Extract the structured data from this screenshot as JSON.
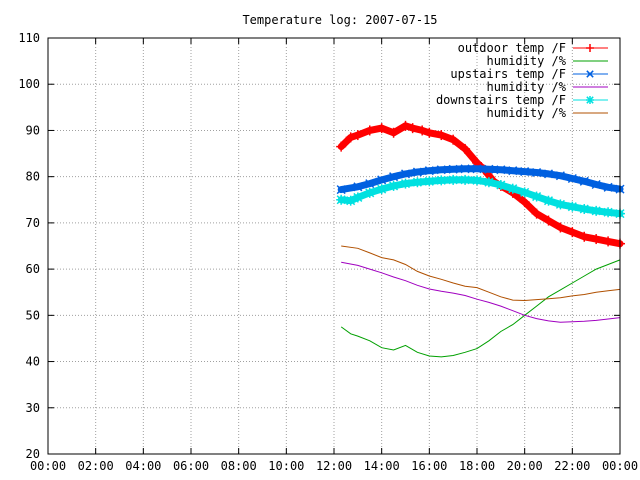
{
  "chart_data": {
    "type": "line",
    "title": "Temperature log: 2007-07-15",
    "xlabel": "",
    "ylabel": "",
    "x_unit": "hours",
    "xlim": [
      0,
      24
    ],
    "ylim": [
      20,
      110
    ],
    "grid": true,
    "legend_placement": "top-right",
    "x_ticks": [
      {
        "value": 0,
        "label": "00:00"
      },
      {
        "value": 2,
        "label": "02:00"
      },
      {
        "value": 4,
        "label": "04:00"
      },
      {
        "value": 6,
        "label": "06:00"
      },
      {
        "value": 8,
        "label": "08:00"
      },
      {
        "value": 10,
        "label": "10:00"
      },
      {
        "value": 12,
        "label": "12:00"
      },
      {
        "value": 14,
        "label": "14:00"
      },
      {
        "value": 16,
        "label": "16:00"
      },
      {
        "value": 18,
        "label": "18:00"
      },
      {
        "value": 20,
        "label": "20:00"
      },
      {
        "value": 22,
        "label": "22:00"
      },
      {
        "value": 24,
        "label": "00:00"
      }
    ],
    "y_ticks": [
      {
        "value": 20,
        "label": "20"
      },
      {
        "value": 30,
        "label": "30"
      },
      {
        "value": 40,
        "label": "40"
      },
      {
        "value": 50,
        "label": "50"
      },
      {
        "value": 60,
        "label": "60"
      },
      {
        "value": 70,
        "label": "70"
      },
      {
        "value": 80,
        "label": "80"
      },
      {
        "value": 90,
        "label": "90"
      },
      {
        "value": 100,
        "label": "100"
      },
      {
        "value": 110,
        "label": "110"
      }
    ],
    "series": [
      {
        "name": "outdoor temp /F",
        "color": "#ff0000",
        "marker": "plus",
        "thick": true,
        "x": [
          12.3,
          12.7,
          13.0,
          13.5,
          14.0,
          14.5,
          15.0,
          15.3,
          15.7,
          16.0,
          16.5,
          17.0,
          17.5,
          18.0,
          18.3,
          18.7,
          19.0,
          19.5,
          20.0,
          20.5,
          21.0,
          21.5,
          22.0,
          22.5,
          23.0,
          23.5,
          24.0
        ],
        "y": [
          86.5,
          88.5,
          89,
          90,
          90.5,
          89.5,
          91,
          90.5,
          90,
          89.5,
          89,
          88,
          86,
          83,
          81.5,
          79,
          78,
          76.5,
          74.5,
          72,
          70.5,
          69,
          68,
          67,
          66.5,
          66,
          65.5
        ]
      },
      {
        "name": "humidity /%",
        "color": "#00a000",
        "marker": "none",
        "thick": false,
        "x": [
          12.3,
          12.7,
          13.0,
          13.5,
          14.0,
          14.5,
          15.0,
          15.5,
          16.0,
          16.5,
          17.0,
          17.5,
          18.0,
          18.5,
          19.0,
          19.5,
          20.0,
          20.5,
          21.0,
          21.5,
          22.0,
          22.5,
          23.0,
          23.5,
          24.0
        ],
        "y": [
          47.5,
          46,
          45.5,
          44.5,
          43,
          42.5,
          43.5,
          42,
          41.2,
          41,
          41.3,
          42,
          42.8,
          44.5,
          46.5,
          48,
          50,
          52,
          54,
          55.5,
          57,
          58.5,
          60,
          61,
          62
        ]
      },
      {
        "name": "upstairs temp /F",
        "color": "#0060e0",
        "marker": "cross",
        "thick": true,
        "x": [
          12.3,
          13.0,
          13.5,
          14.0,
          14.5,
          15.0,
          15.5,
          16.0,
          16.5,
          17.0,
          17.5,
          18.0,
          18.5,
          19.0,
          19.5,
          20.0,
          20.5,
          21.0,
          21.5,
          22.0,
          22.5,
          23.0,
          23.5,
          24.0
        ],
        "y": [
          77.2,
          77.8,
          78.5,
          79.3,
          80,
          80.6,
          81,
          81.3,
          81.5,
          81.6,
          81.7,
          81.7,
          81.6,
          81.5,
          81.3,
          81.1,
          80.9,
          80.6,
          80.2,
          79.6,
          79,
          78.3,
          77.7,
          77.3
        ]
      },
      {
        "name": "humidity /%",
        "color": "#a000c0",
        "marker": "none",
        "thick": false,
        "x": [
          12.3,
          13.0,
          13.5,
          14.0,
          14.5,
          15.0,
          15.5,
          16.0,
          16.5,
          17.0,
          17.5,
          18.0,
          18.5,
          19.0,
          19.5,
          20.0,
          20.5,
          21.0,
          21.5,
          22.0,
          22.5,
          23.0,
          23.5,
          24.0
        ],
        "y": [
          61.5,
          60.8,
          60,
          59.2,
          58.3,
          57.5,
          56.5,
          55.7,
          55.2,
          54.8,
          54.3,
          53.5,
          52.8,
          52,
          51,
          50,
          49.3,
          48.8,
          48.5,
          48.6,
          48.7,
          48.9,
          49.2,
          49.5
        ]
      },
      {
        "name": "downstairs temp /F",
        "color": "#00e0e0",
        "marker": "star",
        "thick": true,
        "x": [
          12.3,
          12.7,
          13.0,
          13.5,
          14.0,
          14.5,
          15.0,
          15.5,
          16.0,
          16.5,
          17.0,
          17.5,
          18.0,
          18.5,
          19.0,
          19.5,
          20.0,
          20.5,
          21.0,
          21.5,
          22.0,
          22.5,
          23.0,
          23.5,
          24.0
        ],
        "y": [
          75,
          74.8,
          75.5,
          76.5,
          77.3,
          78,
          78.5,
          78.8,
          79,
          79.2,
          79.3,
          79.3,
          79.2,
          78.8,
          78.2,
          77.4,
          76.6,
          75.7,
          74.8,
          74,
          73.5,
          73,
          72.6,
          72.3,
          72
        ]
      },
      {
        "name": "humidity /%",
        "color": "#b05000",
        "marker": "none",
        "thick": false,
        "x": [
          12.3,
          13.0,
          13.5,
          14.0,
          14.5,
          15.0,
          15.5,
          16.0,
          16.5,
          17.0,
          17.5,
          18.0,
          18.5,
          19.0,
          19.5,
          20.0,
          20.5,
          21.0,
          21.5,
          22.0,
          22.5,
          23.0,
          23.5,
          24.0
        ],
        "y": [
          65,
          64.5,
          63.5,
          62.5,
          62,
          61,
          59.5,
          58.5,
          57.8,
          57,
          56.3,
          56,
          55,
          54,
          53.3,
          53.2,
          53.4,
          53.6,
          53.8,
          54.2,
          54.5,
          55,
          55.3,
          55.6
        ]
      }
    ]
  }
}
